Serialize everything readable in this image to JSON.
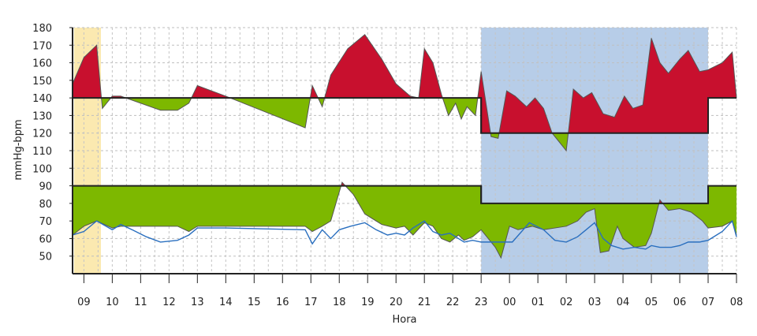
{
  "chart_data": {
    "type": "area",
    "ylabel": "mmHg-bpm",
    "xlabel": "Hora",
    "ylim": [
      40,
      180
    ],
    "yticks": [
      50,
      60,
      70,
      80,
      90,
      100,
      110,
      120,
      130,
      140,
      150,
      160,
      170,
      180
    ],
    "x_tick_labels": [
      "09",
      "10",
      "11",
      "12",
      "13",
      "14",
      "15",
      "16",
      "17",
      "18",
      "19",
      "20",
      "21",
      "22",
      "23",
      "00",
      "01",
      "02",
      "03",
      "04",
      "05",
      "06",
      "07",
      "08"
    ],
    "xlim_hours": [
      8.6,
      32.0
    ],
    "grid": true,
    "shaded_periods": [
      {
        "start_hour": 8.65,
        "end_hour": 9.6,
        "color": "#fbe9b0"
      },
      {
        "start_hour": 23.0,
        "end_hour": 31.0,
        "color": "#b7cde8"
      }
    ],
    "thresholds": {
      "systolic": [
        {
          "from": 8.6,
          "to": 23.0,
          "value": 140
        },
        {
          "from": 23.0,
          "to": 31.0,
          "value": 120
        },
        {
          "from": 31.0,
          "to": 32.0,
          "value": 140
        }
      ],
      "diastolic": [
        {
          "from": 8.6,
          "to": 23.0,
          "value": 90
        },
        {
          "from": 23.0,
          "to": 31.0,
          "value": 80
        },
        {
          "from": 31.0,
          "to": 32.0,
          "value": 90
        }
      ]
    },
    "colors": {
      "above": "#c8102e",
      "below": "#7db800",
      "heart_rate": "#2a6fbf",
      "threshold": "#222222"
    },
    "series": [
      {
        "key": "systolic",
        "x": [
          8.6,
          9.0,
          9.45,
          9.65,
          10.0,
          10.3,
          11.7,
          12.3,
          12.7,
          13.0,
          14.0,
          16.8,
          17.05,
          17.4,
          17.7,
          18.3,
          18.9,
          19.5,
          20.0,
          20.5,
          20.8,
          21.0,
          21.3,
          21.6,
          21.85,
          22.1,
          22.3,
          22.5,
          22.8,
          23.0,
          23.35,
          23.6,
          23.9,
          24.2,
          24.6,
          24.9,
          25.2,
          25.5,
          26.0,
          26.25,
          26.6,
          26.9,
          27.3,
          27.7,
          28.05,
          28.35,
          28.7,
          29.0,
          29.3,
          29.6,
          30.0,
          30.3,
          30.7,
          31.0,
          31.5,
          31.85,
          32.0
        ],
        "values": [
          148,
          163,
          170,
          134,
          141,
          141,
          133,
          133,
          137,
          147,
          141,
          123,
          147,
          135,
          153,
          168,
          176,
          162,
          148,
          141,
          140,
          168,
          160,
          142,
          130,
          137,
          128,
          135,
          130,
          155,
          118,
          117,
          144,
          141,
          135,
          140,
          134,
          120,
          110,
          145,
          140,
          143,
          131,
          129,
          141,
          134,
          136,
          174,
          160,
          154,
          162,
          167,
          155,
          156,
          160,
          166,
          140
        ]
      },
      {
        "key": "diastolic",
        "x": [
          8.6,
          9.0,
          9.45,
          10.0,
          10.3,
          11.7,
          12.3,
          12.7,
          13.0,
          14.0,
          16.8,
          17.05,
          17.4,
          17.7,
          18.1,
          18.5,
          18.9,
          19.5,
          20.0,
          20.3,
          20.6,
          21.0,
          21.3,
          21.6,
          21.9,
          22.2,
          22.4,
          22.7,
          23.0,
          23.5,
          23.7,
          24.0,
          24.3,
          24.8,
          25.2,
          25.6,
          26.0,
          26.4,
          26.7,
          27.0,
          27.2,
          27.5,
          27.8,
          28.0,
          28.4,
          28.8,
          29.0,
          29.3,
          29.6,
          30.0,
          30.4,
          30.8,
          31.0,
          31.5,
          31.85,
          32.0
        ],
        "values": [
          62,
          67,
          70,
          66,
          67,
          67,
          67,
          64,
          67,
          67,
          67,
          64,
          67,
          70,
          92,
          85,
          74,
          68,
          66,
          67,
          62,
          69,
          67,
          60,
          58,
          62,
          59,
          61,
          65,
          55,
          49,
          67,
          65,
          67,
          65,
          66,
          67,
          70,
          75,
          77,
          52,
          53,
          67,
          60,
          55,
          56,
          63,
          82,
          76,
          77,
          75,
          70,
          66,
          67,
          70,
          62
        ]
      },
      {
        "key": "heart_rate",
        "x": [
          8.6,
          9.0,
          9.45,
          10.0,
          10.3,
          10.7,
          11.2,
          11.7,
          12.3,
          12.7,
          13.0,
          14.0,
          16.8,
          17.05,
          17.4,
          17.7,
          18.0,
          18.4,
          18.9,
          19.3,
          19.7,
          20.0,
          20.3,
          20.6,
          21.0,
          21.3,
          21.6,
          21.9,
          22.2,
          22.4,
          22.7,
          23.0,
          23.4,
          23.8,
          24.1,
          24.7,
          25.2,
          25.6,
          26.0,
          26.4,
          26.7,
          27.0,
          27.3,
          27.6,
          28.0,
          28.4,
          28.8,
          29.0,
          29.3,
          29.7,
          30.0,
          30.3,
          30.7,
          31.0,
          31.5,
          31.85,
          32.0
        ],
        "values": [
          62,
          64,
          70,
          65,
          68,
          65,
          61,
          58,
          59,
          62,
          66,
          66,
          65,
          57,
          65,
          60,
          65,
          67,
          69,
          65,
          62,
          63,
          62,
          66,
          70,
          64,
          62,
          63,
          60,
          58,
          59,
          58,
          58,
          58,
          58,
          69,
          65,
          59,
          58,
          61,
          65,
          69,
          60,
          56,
          54,
          55,
          54,
          56,
          55,
          55,
          56,
          58,
          58,
          59,
          64,
          70,
          61
        ]
      }
    ]
  }
}
